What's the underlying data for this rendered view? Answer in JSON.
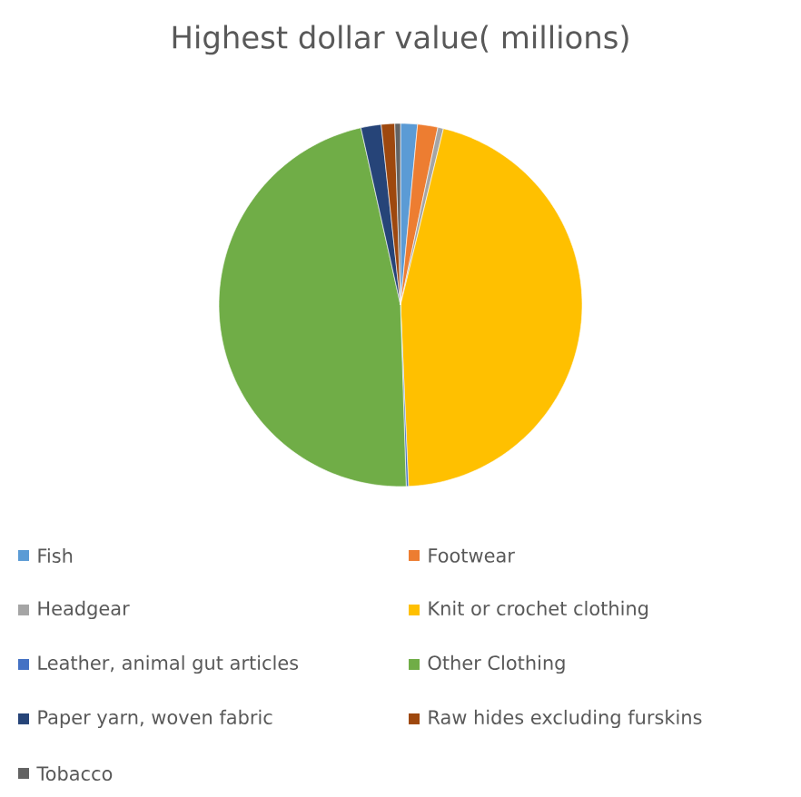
{
  "chart_data": {
    "type": "pie",
    "title": "Highest dollar value( millions)",
    "categories": [
      "Fish",
      "Footwear",
      "Headgear",
      "Knit or crochet clothing",
      "Leather, animal gut articles",
      "Other Clothing",
      "Paper yarn, woven fabric",
      "Raw hides excluding furskins",
      "Tobacco"
    ],
    "values": [
      1.5,
      1.8,
      0.5,
      45.5,
      0.2,
      47,
      1.8,
      1.2,
      0.5
    ],
    "colors": [
      "#5b9bd5",
      "#ed7d31",
      "#a5a5a5",
      "#ffc000",
      "#4472c4",
      "#70ad47",
      "#264478",
      "#9e480e",
      "#636363"
    ],
    "legend": "bottom"
  }
}
